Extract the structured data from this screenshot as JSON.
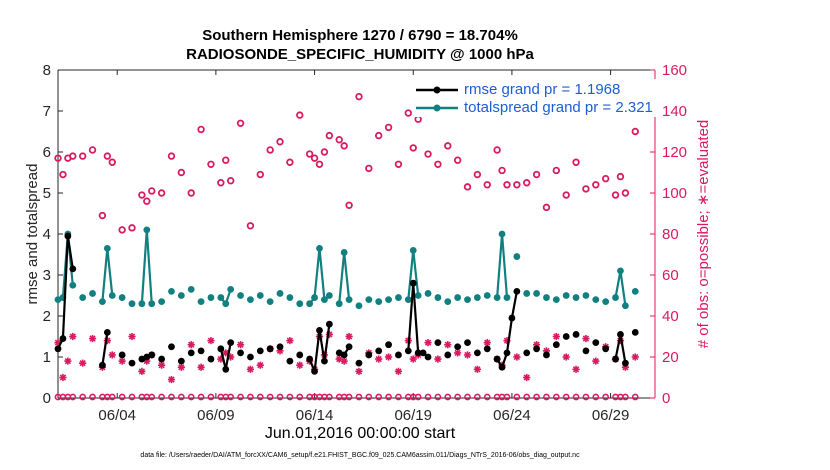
{
  "chart_data": {
    "type": "line",
    "title": "Southern Hemisphere 1270 / 6790 = 18.704%",
    "subtitle": "RADIOSONDE_SPECIFIC_HUMIDITY @ 1000 hPa",
    "xlabel": "Jun.01,2016 00:00:00 start",
    "ylabel_left": "rmse and totalspread",
    "ylabel_right": "# of obs: o=possible; ∗=evaluated",
    "ylim_left": [
      0,
      8
    ],
    "ylim_right": [
      0,
      160
    ],
    "yticks_left": [
      "0",
      "1",
      "2",
      "3",
      "4",
      "5",
      "6",
      "7",
      "8"
    ],
    "yticks_right": [
      "0",
      "20",
      "40",
      "60",
      "80",
      "100",
      "120",
      "140",
      "160"
    ],
    "xlim": [
      0.5,
      30.75
    ],
    "xtick_positions": [
      3.5,
      8.5,
      13.5,
      18.5,
      23.5,
      28.5
    ],
    "xtick_labels": [
      "06/04",
      "06/09",
      "06/14",
      "06/19",
      "06/24",
      "06/29"
    ],
    "footer": "data file: /Users/raeder/DAI/ATM_forcXX/CAM6_setup/f.e21.FHIST_BGC.f09_025.CAM6assim.011/Diags_NTrS_2016-06/obs_diag_output.nc",
    "colors": {
      "rmse": "#000000",
      "spread": "#128080",
      "obs": "#d81b60",
      "legend_text": "#1a5fd4"
    },
    "series": [
      {
        "name": "rmse",
        "legend": "rmse grand pr = 1.1968",
        "axis": "left",
        "x": [
          0.5,
          0.75,
          1.0,
          1.25,
          2.75,
          3.0,
          3.75,
          4.25,
          4.75,
          5.0,
          5.25,
          5.75,
          6.25,
          6.75,
          7.25,
          7.75,
          8.25,
          8.75,
          9.0,
          9.25,
          9.75,
          10.25,
          10.75,
          11.25,
          11.75,
          12.25,
          12.75,
          13.25,
          13.5,
          13.75,
          14.0,
          14.25,
          14.75,
          15.0,
          15.25,
          15.75,
          16.25,
          16.75,
          17.25,
          17.75,
          18.25,
          18.5,
          18.75,
          19.0,
          19.25,
          19.75,
          20.25,
          20.75,
          21.25,
          21.75,
          22.25,
          22.75,
          23.0,
          23.25,
          23.5,
          23.75,
          24.25,
          24.75,
          25.25,
          25.75,
          26.25,
          26.75,
          27.25,
          27.75,
          28.25,
          28.75,
          29.0,
          29.25,
          29.75
        ],
        "y": [
          1.2,
          1.45,
          3.95,
          3.15,
          0.8,
          1.6,
          1.05,
          0.85,
          0.95,
          1.0,
          1.05,
          0.95,
          1.25,
          0.9,
          1.1,
          1.15,
          0.95,
          1.2,
          0.7,
          1.35,
          1.1,
          1.0,
          1.15,
          1.2,
          1.25,
          0.9,
          1.05,
          0.95,
          0.65,
          1.65,
          0.9,
          1.8,
          1.1,
          1.05,
          1.25,
          0.85,
          1.05,
          1.15,
          1.3,
          1.05,
          1.15,
          2.8,
          1.1,
          1.1,
          1.0,
          1.35,
          1.05,
          1.25,
          1.35,
          1.1,
          1.2,
          0.95,
          0.75,
          1.1,
          1.95,
          2.6,
          1.1,
          1.2,
          1.05,
          1.3,
          1.5,
          1.55,
          1.15,
          1.35,
          1.2,
          0.95,
          1.55,
          0.85,
          1.6
        ]
      },
      {
        "name": "totalspread",
        "legend": "totalspread grand pr = 2.321",
        "axis": "left",
        "x": [
          0.5,
          0.75,
          1.0,
          1.25,
          1.75,
          2.25,
          2.75,
          3.0,
          3.25,
          3.75,
          4.25,
          4.75,
          5.0,
          5.25,
          5.75,
          6.25,
          6.75,
          7.25,
          7.75,
          8.25,
          8.75,
          9.0,
          9.25,
          9.75,
          10.25,
          10.75,
          11.25,
          11.75,
          12.25,
          12.75,
          13.25,
          13.5,
          13.75,
          14.0,
          14.25,
          14.75,
          15.0,
          15.25,
          15.75,
          16.25,
          16.75,
          17.25,
          17.75,
          18.25,
          18.5,
          18.75,
          19.25,
          19.75,
          20.25,
          20.75,
          21.25,
          21.75,
          22.25,
          22.75,
          23.0,
          23.25,
          23.75,
          24.25,
          24.75,
          25.25,
          25.75,
          26.25,
          26.75,
          27.25,
          27.75,
          28.25,
          28.75,
          29.0,
          29.25,
          29.75
        ],
        "y": [
          2.4,
          2.45,
          4.0,
          2.75,
          2.45,
          2.55,
          2.35,
          3.65,
          2.5,
          2.45,
          2.3,
          2.3,
          4.1,
          2.3,
          2.35,
          2.6,
          2.5,
          2.65,
          2.35,
          2.45,
          2.45,
          2.3,
          2.65,
          2.5,
          2.4,
          2.5,
          2.35,
          2.55,
          2.45,
          2.3,
          2.3,
          2.45,
          3.65,
          2.4,
          2.5,
          2.3,
          3.55,
          2.4,
          2.25,
          2.4,
          2.35,
          2.4,
          2.45,
          2.4,
          3.6,
          2.5,
          2.55,
          2.45,
          2.35,
          2.45,
          2.4,
          2.45,
          2.5,
          2.45,
          4.0,
          2.45,
          3.45,
          2.55,
          2.55,
          2.45,
          2.4,
          2.5,
          2.45,
          2.5,
          2.4,
          2.35,
          2.45,
          3.1,
          2.25,
          2.6
        ]
      },
      {
        "name": "obs_possible",
        "legend": "",
        "axis": "right",
        "x": [
          0.5,
          0.75,
          1.0,
          1.25,
          1.75,
          2.25,
          2.75,
          3.0,
          3.25,
          3.75,
          4.25,
          4.75,
          5.0,
          5.25,
          5.75,
          6.25,
          6.75,
          7.25,
          7.75,
          8.25,
          8.75,
          9.0,
          9.25,
          9.75,
          10.25,
          10.75,
          11.25,
          11.75,
          12.25,
          12.75,
          13.25,
          13.5,
          13.75,
          14.0,
          14.25,
          14.75,
          15.0,
          15.25,
          15.75,
          16.25,
          16.75,
          17.25,
          17.75,
          18.25,
          18.5,
          18.75,
          19.25,
          19.75,
          20.25,
          20.75,
          21.25,
          21.75,
          22.25,
          22.75,
          23.0,
          23.25,
          23.75,
          24.25,
          24.75,
          25.25,
          25.75,
          26.25,
          26.75,
          27.25,
          27.75,
          28.25,
          28.75,
          29.0,
          29.25,
          29.75
        ],
        "y": [
          117,
          109,
          117,
          118,
          118,
          121,
          89,
          118,
          115,
          82,
          83,
          99,
          96,
          101,
          100,
          118,
          110,
          100,
          131,
          114,
          105,
          116,
          106,
          134,
          84,
          109,
          121,
          125,
          115,
          138,
          119,
          117,
          114,
          120,
          128,
          126,
          123,
          94,
          147,
          112,
          128,
          132,
          114,
          139,
          122,
          136,
          119,
          114,
          123,
          116,
          103,
          109,
          104,
          121,
          111,
          104,
          104,
          105,
          109,
          93,
          111,
          99,
          115,
          102,
          104,
          107,
          99,
          108,
          100,
          130
        ]
      },
      {
        "name": "obs_evaluated",
        "legend": "",
        "axis": "right",
        "x": [
          0.5,
          0.75,
          1.0,
          1.25,
          1.75,
          2.25,
          2.75,
          3.0,
          3.25,
          3.75,
          4.25,
          4.75,
          5.0,
          5.25,
          5.75,
          6.25,
          6.75,
          7.25,
          7.75,
          8.25,
          8.75,
          9.0,
          9.25,
          9.75,
          10.25,
          10.75,
          11.25,
          11.75,
          12.25,
          12.75,
          13.25,
          13.5,
          13.75,
          14.0,
          14.25,
          14.75,
          15.0,
          15.25,
          15.75,
          16.25,
          16.75,
          17.25,
          17.75,
          18.25,
          18.5,
          18.75,
          19.25,
          19.75,
          20.25,
          20.75,
          21.25,
          21.75,
          22.25,
          22.75,
          23.0,
          23.25,
          23.75,
          24.25,
          24.75,
          25.25,
          25.75,
          26.25,
          26.75,
          27.25,
          27.75,
          28.25,
          28.75,
          29.0,
          29.25,
          29.75
        ],
        "y": [
          27,
          10,
          18,
          30,
          17,
          29,
          15,
          28,
          21,
          18,
          30,
          13,
          18,
          21,
          16,
          9,
          15,
          26,
          15,
          28,
          19,
          22,
          20,
          26,
          14,
          16,
          24,
          23,
          28,
          16,
          18,
          14,
          30,
          21,
          31,
          19,
          18,
          30,
          13,
          22,
          19,
          20,
          13,
          28,
          19,
          21,
          27,
          19,
          26,
          22,
          21,
          14,
          27,
          19,
          16,
          28,
          20,
          10,
          26,
          23,
          30,
          20,
          14,
          29,
          18,
          25,
          19,
          28,
          15,
          20
        ]
      }
    ]
  }
}
